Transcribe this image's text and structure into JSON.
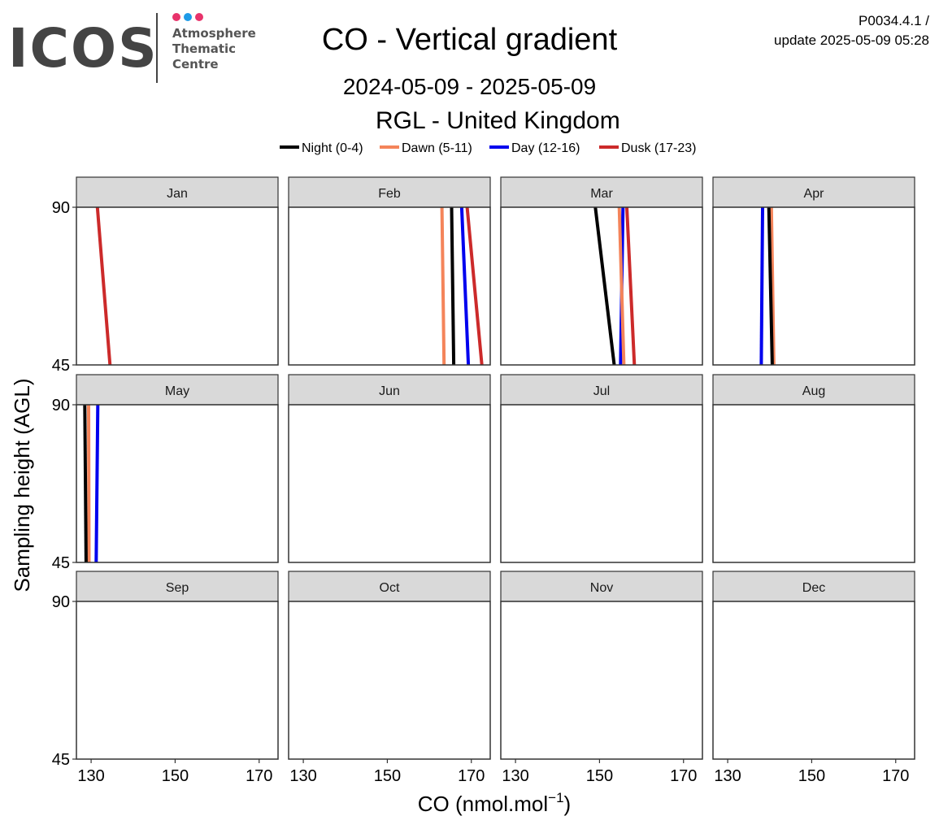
{
  "header": {
    "logo": {
      "brand": "ICOS",
      "sub_lines": [
        "Atmosphere",
        "Thematic",
        "Centre"
      ],
      "dot_colors": [
        "#e8336b",
        "#1e9be8",
        "#e8336b"
      ],
      "brand_color": "#444444"
    },
    "title": "CO - Vertical gradient",
    "date_range": "2024-05-09 - 2025-05-09",
    "station": "RGL - United Kingdom",
    "version": "P0034.4.1 /",
    "update": "update  2025-05-09 05:28"
  },
  "chart_data": {
    "type": "line",
    "facet_by": "month",
    "xlabel": "CO (nmol.mol",
    "xlabel_superscript": "−1",
    "xlabel_suffix": ")",
    "ylabel": "Sampling height (AGL)",
    "xlim": [
      126.5,
      174.5
    ],
    "ylim": [
      45,
      90
    ],
    "xticks": [
      130,
      150,
      170
    ],
    "yticks": [
      45,
      90
    ],
    "grid": false,
    "legend_position": "top",
    "series_meta": [
      {
        "name": "Night (0-4)",
        "color": "#000000"
      },
      {
        "name": "Dawn (5-11)",
        "color": "#f4845a"
      },
      {
        "name": "Day (12-16)",
        "color": "#0000ee"
      },
      {
        "name": "Dusk (17-23)",
        "color": "#cc2a2a"
      }
    ],
    "panels": [
      {
        "label": "Jan",
        "series": [
          {
            "name": "Dusk (17-23)",
            "points": [
              {
                "x": 134.5,
                "y": 45
              },
              {
                "x": 131.5,
                "y": 90
              }
            ]
          }
        ]
      },
      {
        "label": "Feb",
        "series": [
          {
            "name": "Dawn (5-11)",
            "points": [
              {
                "x": 163.5,
                "y": 45
              },
              {
                "x": 163.0,
                "y": 90
              }
            ]
          },
          {
            "name": "Night (0-4)",
            "points": [
              {
                "x": 165.8,
                "y": 45
              },
              {
                "x": 165.3,
                "y": 90
              }
            ]
          },
          {
            "name": "Day (12-16)",
            "points": [
              {
                "x": 169.3,
                "y": 45
              },
              {
                "x": 167.7,
                "y": 90
              }
            ]
          },
          {
            "name": "Dusk (17-23)",
            "points": [
              {
                "x": 172.5,
                "y": 45
              },
              {
                "x": 169.0,
                "y": 90
              }
            ]
          }
        ]
      },
      {
        "label": "Mar",
        "series": [
          {
            "name": "Night (0-4)",
            "points": [
              {
                "x": 153.5,
                "y": 45
              },
              {
                "x": 149.0,
                "y": 90
              }
            ]
          },
          {
            "name": "Day (12-16)",
            "points": [
              {
                "x": 155.0,
                "y": 45
              },
              {
                "x": 155.6,
                "y": 90
              }
            ]
          },
          {
            "name": "Dawn (5-11)",
            "points": [
              {
                "x": 155.8,
                "y": 45
              },
              {
                "x": 154.7,
                "y": 90
              }
            ]
          },
          {
            "name": "Dusk (17-23)",
            "points": [
              {
                "x": 158.3,
                "y": 45
              },
              {
                "x": 156.5,
                "y": 90
              }
            ]
          }
        ]
      },
      {
        "label": "Apr",
        "series": [
          {
            "name": "Day (12-16)",
            "points": [
              {
                "x": 138.0,
                "y": 45
              },
              {
                "x": 138.3,
                "y": 90
              }
            ]
          },
          {
            "name": "Dawn (5-11)",
            "points": [
              {
                "x": 141.0,
                "y": 45
              },
              {
                "x": 140.4,
                "y": 90
              }
            ]
          },
          {
            "name": "Night (0-4)",
            "points": [
              {
                "x": 140.6,
                "y": 45
              },
              {
                "x": 139.8,
                "y": 90
              }
            ]
          }
        ]
      },
      {
        "label": "May",
        "series": [
          {
            "name": "Dawn (5-11)",
            "points": [
              {
                "x": 129.5,
                "y": 45
              },
              {
                "x": 129.4,
                "y": 90
              }
            ]
          },
          {
            "name": "Night (0-4)",
            "points": [
              {
                "x": 128.8,
                "y": 45
              },
              {
                "x": 128.5,
                "y": 90
              }
            ]
          },
          {
            "name": "Day (12-16)",
            "points": [
              {
                "x": 131.2,
                "y": 45
              },
              {
                "x": 131.6,
                "y": 90
              }
            ]
          }
        ]
      },
      {
        "label": "Jun",
        "series": []
      },
      {
        "label": "Jul",
        "series": []
      },
      {
        "label": "Aug",
        "series": []
      },
      {
        "label": "Sep",
        "series": []
      },
      {
        "label": "Oct",
        "series": []
      },
      {
        "label": "Nov",
        "series": []
      },
      {
        "label": "Dec",
        "series": []
      }
    ]
  }
}
